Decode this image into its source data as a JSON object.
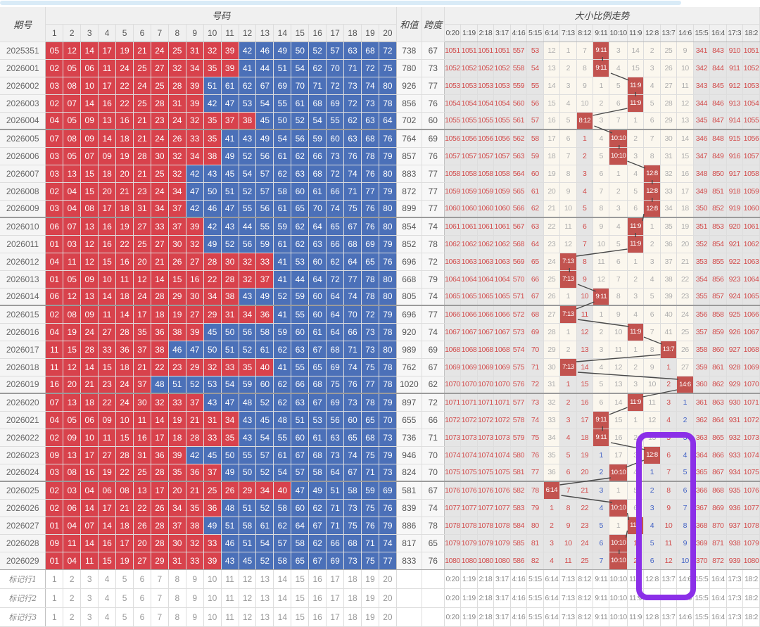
{
  "header": {
    "period_label": "期号",
    "numbers_label": "号码",
    "sum_label": "和值",
    "span_label": "跨度",
    "trend_label": "大小比例走势",
    "number_cols": [
      "1",
      "2",
      "3",
      "4",
      "5",
      "6",
      "7",
      "8",
      "9",
      "10",
      "11",
      "12",
      "13",
      "14",
      "15",
      "16",
      "17",
      "18",
      "19",
      "20"
    ],
    "ratio_cols": [
      "0:20",
      "1:19",
      "2:18",
      "3:17",
      "4:16",
      "5:15",
      "6:14",
      "7:13",
      "8:12",
      "9:11",
      "10:10",
      "11:9",
      "12:8",
      "13:7",
      "14:6",
      "15:5",
      "16:4",
      "17:3",
      "18:2"
    ]
  },
  "colors": {
    "small_ball": "#d8424c",
    "big_ball": "#4b70b8",
    "hit_cell": "#c2534f",
    "cold_bg": "#e5e5e5",
    "red_text": "#d24c4c",
    "blue_text": "#4464c5",
    "highlight_box": "#8b2fe8",
    "top_strip": "#d9ebf7"
  },
  "blue_run_cols": [
    9,
    12,
    14
  ],
  "highlight_box": {
    "columns": [
      "12:8",
      "13:7"
    ],
    "from_period": "2026022",
    "to_row": "标记行1"
  },
  "rows": [
    {
      "p": "2025351",
      "n": [
        5,
        12,
        14,
        17,
        19,
        21,
        24,
        25,
        31,
        32,
        39,
        42,
        46,
        49,
        50,
        52,
        57,
        63,
        68,
        72
      ],
      "s": 738,
      "k": 67,
      "r": [
        "1051",
        "1051",
        "1051",
        "1051",
        "557",
        "53",
        "12",
        "1",
        "7",
        "9:11",
        "3",
        "14",
        "2",
        "25",
        "9",
        "341",
        "843",
        "910",
        "1051"
      ]
    },
    {
      "p": "2026001",
      "n": [
        2,
        5,
        6,
        11,
        24,
        25,
        27,
        32,
        34,
        35,
        39,
        41,
        44,
        51,
        54,
        62,
        70,
        71,
        72,
        75
      ],
      "s": 780,
      "k": 73,
      "r": [
        "1052",
        "1052",
        "1052",
        "1052",
        "558",
        "54",
        "13",
        "2",
        "8",
        "9:11",
        "4",
        "15",
        "3",
        "26",
        "10",
        "342",
        "844",
        "911",
        "1052"
      ]
    },
    {
      "p": "2026002",
      "n": [
        3,
        8,
        10,
        17,
        22,
        24,
        25,
        28,
        39,
        51,
        61,
        62,
        67,
        69,
        70,
        71,
        72,
        73,
        74,
        80
      ],
      "s": 926,
      "k": 77,
      "r": [
        "1053",
        "1053",
        "1053",
        "1053",
        "559",
        "55",
        "14",
        "3",
        "9",
        "1",
        "5",
        "11:9",
        "4",
        "27",
        "11",
        "343",
        "845",
        "912",
        "1053"
      ]
    },
    {
      "p": "2026003",
      "n": [
        2,
        7,
        14,
        16,
        22,
        25,
        28,
        31,
        39,
        42,
        47,
        53,
        54,
        55,
        61,
        68,
        69,
        72,
        73,
        78
      ],
      "s": 856,
      "k": 76,
      "r": [
        "1054",
        "1054",
        "1054",
        "1054",
        "560",
        "56",
        "15",
        "4",
        "10",
        "2",
        "6",
        "11:9",
        "5",
        "28",
        "12",
        "344",
        "846",
        "913",
        "1054"
      ]
    },
    {
      "p": "2026004",
      "n": [
        4,
        5,
        9,
        13,
        16,
        21,
        23,
        24,
        32,
        35,
        37,
        38,
        45,
        50,
        52,
        54,
        55,
        62,
        63,
        64
      ],
      "s": 702,
      "k": 60,
      "r": [
        "1055",
        "1055",
        "1055",
        "1055",
        "561",
        "57",
        "16",
        "5",
        "8:12",
        "3",
        "7",
        "1",
        "6",
        "29",
        "13",
        "345",
        "847",
        "914",
        "1055"
      ]
    },
    {
      "p": "2026005",
      "n": [
        7,
        8,
        9,
        14,
        18,
        21,
        24,
        26,
        33,
        35,
        41,
        43,
        49,
        54,
        56,
        59,
        60,
        63,
        68,
        76
      ],
      "s": 764,
      "k": 69,
      "r": [
        "1056",
        "1056",
        "1056",
        "1056",
        "562",
        "58",
        "17",
        "6",
        "1",
        "4",
        "10:10",
        "2",
        "7",
        "30",
        "14",
        "346",
        "848",
        "915",
        "1056"
      ]
    },
    {
      "p": "2026006",
      "n": [
        3,
        5,
        7,
        9,
        19,
        28,
        30,
        32,
        34,
        38,
        49,
        52,
        56,
        61,
        62,
        66,
        73,
        76,
        78,
        79
      ],
      "s": 857,
      "k": 76,
      "r": [
        "1057",
        "1057",
        "1057",
        "1057",
        "563",
        "59",
        "18",
        "7",
        "2",
        "5",
        "10:10",
        "3",
        "8",
        "31",
        "15",
        "347",
        "849",
        "916",
        "1057"
      ]
    },
    {
      "p": "2026007",
      "n": [
        3,
        13,
        15,
        18,
        20,
        21,
        25,
        32,
        42,
        43,
        45,
        54,
        57,
        62,
        63,
        68,
        72,
        74,
        76,
        80
      ],
      "s": 883,
      "k": 77,
      "r": [
        "1058",
        "1058",
        "1058",
        "1058",
        "564",
        "60",
        "19",
        "8",
        "3",
        "6",
        "1",
        "4",
        "12:8",
        "32",
        "16",
        "348",
        "850",
        "917",
        "1058"
      ]
    },
    {
      "p": "2026008",
      "n": [
        2,
        4,
        15,
        20,
        21,
        23,
        24,
        34,
        47,
        50,
        51,
        52,
        57,
        58,
        60,
        61,
        66,
        71,
        77,
        79
      ],
      "s": 872,
      "k": 77,
      "r": [
        "1059",
        "1059",
        "1059",
        "1059",
        "565",
        "61",
        "20",
        "9",
        "4",
        "7",
        "2",
        "5",
        "12:8",
        "33",
        "17",
        "349",
        "851",
        "918",
        "1059"
      ]
    },
    {
      "p": "2026009",
      "n": [
        3,
        4,
        8,
        17,
        18,
        31,
        34,
        37,
        42,
        46,
        47,
        55,
        56,
        61,
        65,
        70,
        74,
        75,
        76,
        80
      ],
      "s": 899,
      "k": 77,
      "r": [
        "1060",
        "1060",
        "1060",
        "1060",
        "566",
        "62",
        "21",
        "10",
        "5",
        "8",
        "3",
        "6",
        "12:8",
        "34",
        "18",
        "350",
        "852",
        "919",
        "1060"
      ]
    },
    {
      "p": "2026010",
      "n": [
        6,
        7,
        13,
        16,
        19,
        27,
        33,
        37,
        39,
        42,
        43,
        44,
        55,
        59,
        62,
        64,
        65,
        67,
        76,
        80
      ],
      "s": 854,
      "k": 74,
      "r": [
        "1061",
        "1061",
        "1061",
        "1061",
        "567",
        "63",
        "22",
        "11",
        "6",
        "9",
        "4",
        "11:9",
        "1",
        "35",
        "19",
        "351",
        "853",
        "920",
        "1061"
      ]
    },
    {
      "p": "2026011",
      "n": [
        1,
        3,
        12,
        16,
        22,
        25,
        27,
        30,
        32,
        49,
        52,
        56,
        59,
        61,
        62,
        63,
        66,
        68,
        69,
        79
      ],
      "s": 852,
      "k": 78,
      "r": [
        "1062",
        "1062",
        "1062",
        "1062",
        "568",
        "64",
        "23",
        "12",
        "7",
        "10",
        "5",
        "11:9",
        "2",
        "36",
        "20",
        "352",
        "854",
        "921",
        "1062"
      ]
    },
    {
      "p": "2026012",
      "n": [
        4,
        11,
        12,
        15,
        16,
        20,
        21,
        26,
        27,
        28,
        30,
        32,
        33,
        41,
        53,
        60,
        62,
        64,
        65,
        76
      ],
      "s": 696,
      "k": 72,
      "r": [
        "1063",
        "1063",
        "1063",
        "1063",
        "569",
        "65",
        "24",
        "7:13",
        "8",
        "11",
        "6",
        "1",
        "3",
        "37",
        "21",
        "353",
        "855",
        "922",
        "1063"
      ]
    },
    {
      "p": "2026013",
      "n": [
        1,
        5,
        9,
        10,
        11,
        12,
        14,
        15,
        16,
        22,
        28,
        32,
        37,
        41,
        44,
        64,
        72,
        77,
        78,
        80
      ],
      "s": 668,
      "k": 79,
      "r": [
        "1064",
        "1064",
        "1064",
        "1064",
        "570",
        "66",
        "25",
        "7:13",
        "9",
        "12",
        "7",
        "2",
        "4",
        "38",
        "22",
        "354",
        "856",
        "923",
        "1064"
      ]
    },
    {
      "p": "2026014",
      "n": [
        6,
        12,
        13,
        14,
        18,
        24,
        28,
        29,
        30,
        34,
        38,
        43,
        49,
        52,
        59,
        60,
        64,
        74,
        78,
        80
      ],
      "s": 805,
      "k": 74,
      "r": [
        "1065",
        "1065",
        "1065",
        "1065",
        "571",
        "67",
        "26",
        "1",
        "10",
        "9:11",
        "8",
        "3",
        "5",
        "39",
        "23",
        "355",
        "857",
        "924",
        "1065"
      ]
    },
    {
      "p": "2026015",
      "n": [
        2,
        8,
        9,
        11,
        14,
        17,
        18,
        19,
        27,
        29,
        31,
        34,
        36,
        41,
        55,
        60,
        64,
        70,
        72,
        79
      ],
      "s": 696,
      "k": 77,
      "r": [
        "1066",
        "1066",
        "1066",
        "1066",
        "572",
        "68",
        "27",
        "7:13",
        "11",
        "1",
        "9",
        "4",
        "6",
        "40",
        "24",
        "356",
        "858",
        "925",
        "1066"
      ]
    },
    {
      "p": "2026016",
      "n": [
        4,
        19,
        24,
        27,
        28,
        35,
        36,
        38,
        39,
        45,
        50,
        56,
        58,
        59,
        60,
        61,
        64,
        66,
        73,
        78
      ],
      "s": 920,
      "k": 74,
      "r": [
        "1067",
        "1067",
        "1067",
        "1067",
        "573",
        "69",
        "28",
        "1",
        "12",
        "2",
        "10",
        "11:9",
        "7",
        "41",
        "25",
        "357",
        "859",
        "926",
        "1067"
      ]
    },
    {
      "p": "2026017",
      "n": [
        11,
        15,
        28,
        33,
        36,
        37,
        38,
        46,
        47,
        50,
        51,
        52,
        61,
        62,
        63,
        67,
        68,
        71,
        73,
        80
      ],
      "s": 989,
      "k": 69,
      "r": [
        "1068",
        "1068",
        "1068",
        "1068",
        "574",
        "70",
        "29",
        "2",
        "13",
        "3",
        "11",
        "1",
        "8",
        "13:7",
        "26",
        "358",
        "860",
        "927",
        "1068"
      ]
    },
    {
      "p": "2026018",
      "n": [
        11,
        12,
        14,
        15,
        18,
        21,
        22,
        23,
        29,
        32,
        33,
        35,
        40,
        41,
        55,
        65,
        69,
        74,
        75,
        78
      ],
      "s": 762,
      "k": 67,
      "r": [
        "1069",
        "1069",
        "1069",
        "1069",
        "575",
        "71",
        "30",
        "7:13",
        "14",
        "4",
        "12",
        "2",
        "9",
        "1",
        "27",
        "359",
        "861",
        "928",
        "1069"
      ]
    },
    {
      "p": "2026019",
      "n": [
        16,
        20,
        21,
        23,
        24,
        37,
        48,
        51,
        52,
        53,
        54,
        59,
        60,
        62,
        66,
        68,
        75,
        76,
        77,
        78
      ],
      "s": 1020,
      "k": 62,
      "r": [
        "1070",
        "1070",
        "1070",
        "1070",
        "576",
        "72",
        "31",
        "1",
        "15",
        "5",
        "13",
        "3",
        "10",
        "2",
        "14:6",
        "360",
        "862",
        "929",
        "1070"
      ]
    },
    {
      "p": "2026020",
      "n": [
        7,
        13,
        18,
        22,
        24,
        30,
        32,
        33,
        37,
        43,
        47,
        48,
        52,
        62,
        63,
        67,
        69,
        73,
        78,
        79
      ],
      "s": 897,
      "k": 72,
      "r": [
        "1071",
        "1071",
        "1071",
        "1071",
        "577",
        "73",
        "32",
        "2",
        "16",
        "6",
        "14",
        "11:9",
        "11",
        "3",
        "1",
        "361",
        "863",
        "930",
        "1071"
      ]
    },
    {
      "p": "2026021",
      "n": [
        4,
        5,
        6,
        9,
        10,
        11,
        14,
        19,
        21,
        31,
        34,
        43,
        45,
        48,
        51,
        53,
        56,
        60,
        65,
        70
      ],
      "s": 655,
      "k": 66,
      "r": [
        "1072",
        "1072",
        "1072",
        "1072",
        "578",
        "74",
        "33",
        "3",
        "17",
        "9:11",
        "15",
        "1",
        "12",
        "4",
        "2",
        "362",
        "864",
        "931",
        "1072"
      ]
    },
    {
      "p": "2026022",
      "n": [
        2,
        9,
        10,
        11,
        15,
        16,
        17,
        18,
        28,
        33,
        35,
        43,
        54,
        55,
        60,
        61,
        63,
        65,
        68,
        73
      ],
      "s": 736,
      "k": 71,
      "r": [
        "1073",
        "1073",
        "1073",
        "1073",
        "579",
        "75",
        "34",
        "4",
        "18",
        "9:11",
        "16",
        "2",
        "13",
        "5",
        "3",
        "363",
        "865",
        "932",
        "1073"
      ]
    },
    {
      "p": "2026023",
      "n": [
        9,
        13,
        17,
        27,
        28,
        31,
        36,
        39,
        42,
        45,
        50,
        55,
        57,
        61,
        67,
        68,
        73,
        74,
        75,
        79
      ],
      "s": 946,
      "k": 70,
      "r": [
        "1074",
        "1074",
        "1074",
        "1074",
        "580",
        "76",
        "35",
        "5",
        "19",
        "1",
        "17",
        "3",
        "12:8",
        "6",
        "4",
        "364",
        "866",
        "933",
        "1074"
      ]
    },
    {
      "p": "2026024",
      "n": [
        3,
        8,
        16,
        19,
        22,
        25,
        28,
        35,
        36,
        37,
        49,
        50,
        52,
        54,
        57,
        58,
        64,
        67,
        71,
        73
      ],
      "s": 824,
      "k": 70,
      "r": [
        "1075",
        "1075",
        "1075",
        "1075",
        "581",
        "77",
        "36",
        "6",
        "20",
        "2",
        "10:10",
        "4",
        "1",
        "7",
        "5",
        "365",
        "867",
        "934",
        "1075"
      ]
    },
    {
      "p": "2026025",
      "n": [
        2,
        3,
        4,
        6,
        8,
        13,
        17,
        20,
        21,
        25,
        26,
        29,
        34,
        40,
        47,
        49,
        51,
        58,
        59,
        69
      ],
      "s": 581,
      "k": 67,
      "r": [
        "1076",
        "1076",
        "1076",
        "1076",
        "582",
        "78",
        "6:14",
        "7",
        "21",
        "3",
        "1",
        "5",
        "2",
        "8",
        "6",
        "366",
        "868",
        "935",
        "1076"
      ]
    },
    {
      "p": "2026026",
      "n": [
        2,
        6,
        14,
        17,
        21,
        22,
        26,
        34,
        35,
        36,
        48,
        51,
        52,
        58,
        60,
        62,
        71,
        73,
        75,
        76
      ],
      "s": 839,
      "k": 74,
      "r": [
        "1077",
        "1077",
        "1077",
        "1077",
        "583",
        "79",
        "1",
        "8",
        "22",
        "4",
        "10:10",
        "6",
        "3",
        "9",
        "7",
        "367",
        "869",
        "936",
        "1077"
      ]
    },
    {
      "p": "2026027",
      "n": [
        1,
        4,
        7,
        14,
        18,
        26,
        28,
        37,
        38,
        49,
        51,
        58,
        61,
        62,
        64,
        67,
        71,
        75,
        76,
        79
      ],
      "s": 886,
      "k": 78,
      "r": [
        "1078",
        "1078",
        "1078",
        "1078",
        "584",
        "80",
        "2",
        "9",
        "23",
        "5",
        "1",
        "11:9",
        "4",
        "10",
        "8",
        "368",
        "870",
        "937",
        "1078"
      ]
    },
    {
      "p": "2026028",
      "n": [
        9,
        11,
        14,
        16,
        17,
        20,
        28,
        30,
        32,
        33,
        46,
        51,
        54,
        57,
        58,
        62,
        66,
        68,
        71,
        74
      ],
      "s": 817,
      "k": 65,
      "r": [
        "1079",
        "1079",
        "1079",
        "1079",
        "585",
        "81",
        "3",
        "10",
        "24",
        "6",
        "10:10",
        "1",
        "5",
        "11",
        "9",
        "369",
        "871",
        "938",
        "1079"
      ]
    },
    {
      "p": "2026029",
      "n": [
        1,
        4,
        11,
        15,
        19,
        27,
        29,
        31,
        33,
        39,
        43,
        45,
        52,
        58,
        65,
        67,
        69,
        73,
        75,
        77
      ],
      "s": 833,
      "k": 76,
      "r": [
        "1080",
        "1080",
        "1080",
        "1080",
        "586",
        "82",
        "4",
        "11",
        "25",
        "7",
        "10:10",
        "2",
        "6",
        "12",
        "10",
        "370",
        "872",
        "939",
        "1080"
      ]
    }
  ],
  "marker_rows": [
    {
      "label": "标记行1"
    },
    {
      "label": "标记行2"
    },
    {
      "label": "标记行3"
    }
  ]
}
